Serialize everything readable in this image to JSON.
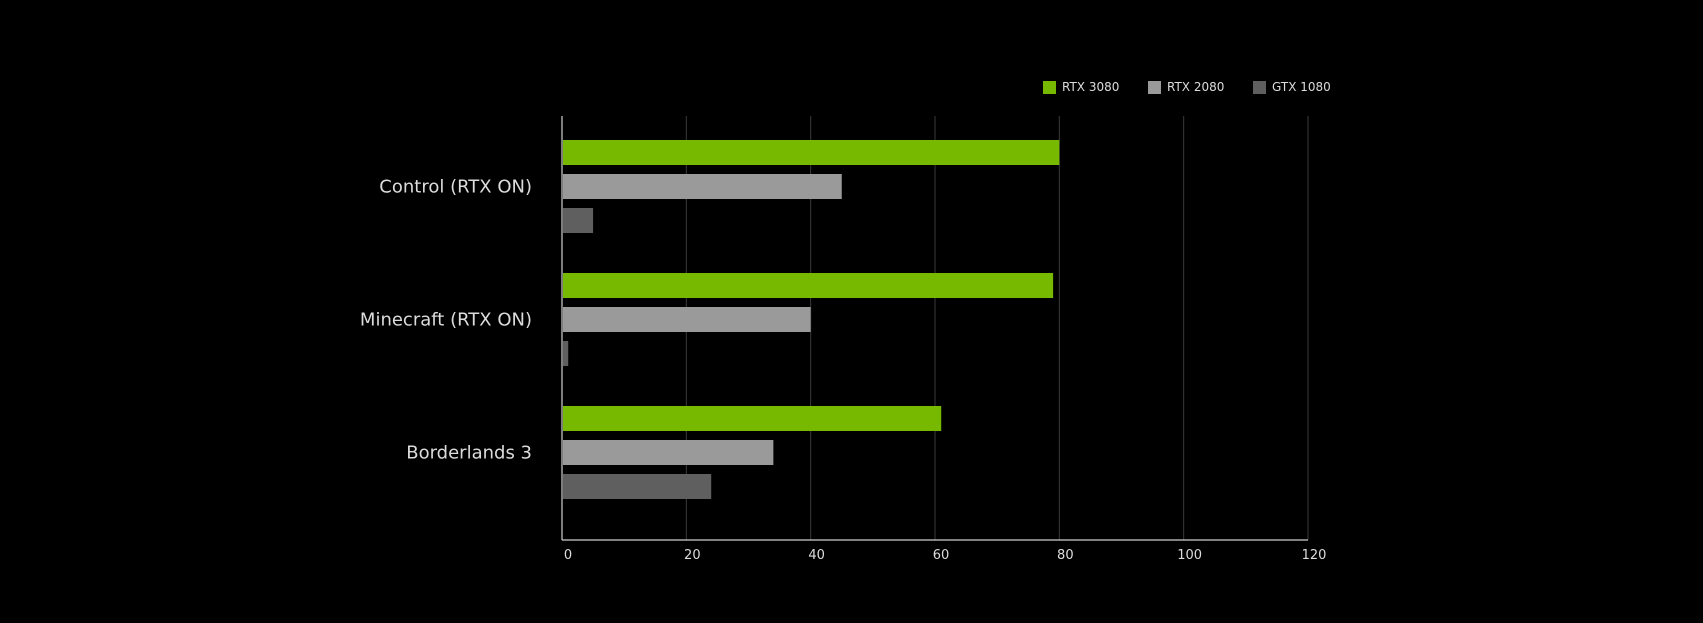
{
  "chart_data": {
    "type": "bar",
    "orientation": "horizontal",
    "categories": [
      "Control (RTX ON)",
      "Minecraft (RTX ON)",
      "Borderlands 3"
    ],
    "series": [
      {
        "name": "RTX 3080",
        "color": "#76b900",
        "values": [
          80,
          79,
          61
        ]
      },
      {
        "name": "RTX 2080",
        "color": "#9a9a9a",
        "values": [
          45,
          40,
          34
        ]
      },
      {
        "name": "GTX 1080",
        "color": "#5f5f5f",
        "values": [
          5,
          1,
          24
        ]
      }
    ],
    "xlim": [
      0,
      120
    ],
    "xticks": [
      0,
      20,
      40,
      60,
      80,
      100,
      120
    ],
    "title": "",
    "xlabel": "",
    "ylabel": "",
    "grid": "vertical",
    "legend_position": "top-right"
  }
}
